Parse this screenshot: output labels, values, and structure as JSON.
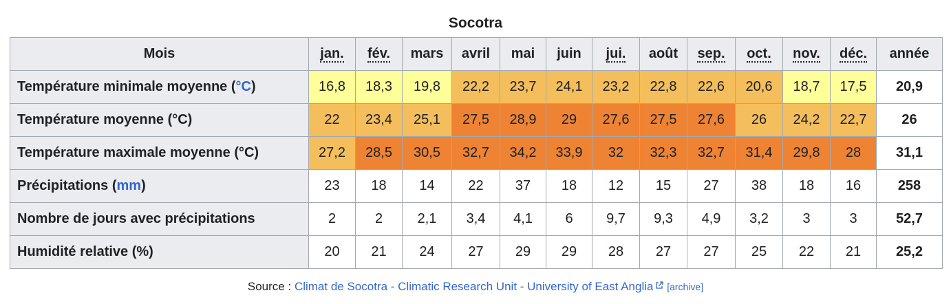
{
  "caption": "Socotra",
  "header": {
    "label": "Mois",
    "months": [
      "jan.",
      "fév.",
      "mars",
      "avril",
      "mai",
      "juin",
      "jui.",
      "août",
      "sep.",
      "oct.",
      "nov.",
      "déc."
    ],
    "abbreviated": [
      true,
      true,
      false,
      false,
      false,
      false,
      true,
      false,
      true,
      true,
      true,
      true
    ],
    "annual": "année"
  },
  "rows": [
    {
      "label": "Température minimale moyenne (",
      "unit": "°C",
      "unit_link": true,
      "label_end": ")",
      "values": [
        "16,8",
        "18,3",
        "19,8",
        "22,2",
        "23,7",
        "24,1",
        "23,2",
        "22,8",
        "22,6",
        "20,6",
        "18,7",
        "17,5"
      ],
      "colors": [
        "#ffff99",
        "#ffff99",
        "#ffff99",
        "#f4be5c",
        "#f4be5c",
        "#f4be5c",
        "#f4be5c",
        "#f4be5c",
        "#f4be5c",
        "#f4be5c",
        "#ffff99",
        "#ffff99"
      ],
      "annual": "20,9"
    },
    {
      "label": "Température moyenne (°C)",
      "unit": "",
      "unit_link": false,
      "label_end": "",
      "values": [
        "22",
        "23,4",
        "25,1",
        "27,5",
        "28,9",
        "29",
        "27,6",
        "27,5",
        "27,6",
        "26",
        "24,2",
        "22,7"
      ],
      "colors": [
        "#f4be5c",
        "#f4be5c",
        "#f4be5c",
        "#ee8333",
        "#ee8333",
        "#ee8333",
        "#ee8333",
        "#ee8333",
        "#ee8333",
        "#f4be5c",
        "#f4be5c",
        "#f4be5c"
      ],
      "annual": "26"
    },
    {
      "label": "Température maximale moyenne (°C)",
      "unit": "",
      "unit_link": false,
      "label_end": "",
      "values": [
        "27,2",
        "28,5",
        "30,5",
        "32,7",
        "34,2",
        "33,9",
        "32",
        "32,3",
        "32,7",
        "31,4",
        "29,8",
        "28"
      ],
      "colors": [
        "#f4be5c",
        "#ee8333",
        "#ee8333",
        "#ee8333",
        "#ee8333",
        "#ee8333",
        "#ee8333",
        "#ee8333",
        "#ee8333",
        "#ee8333",
        "#ee8333",
        "#ee8333"
      ],
      "annual": "31,1"
    },
    {
      "label": "Précipitations (",
      "unit": "mm",
      "unit_link": true,
      "label_end": ")",
      "values": [
        "23",
        "18",
        "14",
        "22",
        "37",
        "18",
        "12",
        "15",
        "27",
        "38",
        "18",
        "16"
      ],
      "colors": [
        "#ffffff",
        "#ffffff",
        "#ffffff",
        "#ffffff",
        "#ffffff",
        "#ffffff",
        "#ffffff",
        "#ffffff",
        "#ffffff",
        "#ffffff",
        "#ffffff",
        "#ffffff"
      ],
      "annual": "258"
    },
    {
      "label": "Nombre de jours avec précipitations",
      "unit": "",
      "unit_link": false,
      "label_end": "",
      "values": [
        "2",
        "2",
        "2,1",
        "3,4",
        "4,1",
        "6",
        "9,7",
        "9,3",
        "4,9",
        "3,2",
        "3",
        "3"
      ],
      "colors": [
        "#ffffff",
        "#ffffff",
        "#ffffff",
        "#ffffff",
        "#ffffff",
        "#ffffff",
        "#ffffff",
        "#ffffff",
        "#ffffff",
        "#ffffff",
        "#ffffff",
        "#ffffff"
      ],
      "annual": "52,7"
    },
    {
      "label": "Humidité relative (%)",
      "unit": "",
      "unit_link": false,
      "label_end": "",
      "values": [
        "20",
        "21",
        "24",
        "27",
        "29",
        "29",
        "28",
        "27",
        "27",
        "25",
        "22",
        "21"
      ],
      "colors": [
        "#ffffff",
        "#ffffff",
        "#ffffff",
        "#ffffff",
        "#ffffff",
        "#ffffff",
        "#ffffff",
        "#ffffff",
        "#ffffff",
        "#ffffff",
        "#ffffff",
        "#ffffff"
      ],
      "annual": "25,2"
    }
  ],
  "source": {
    "prefix": "Source : ",
    "link_text": "Climat de Socotra - Climatic Research Unit - University of East Anglia",
    "link_icon": "external-link-icon",
    "archive": "[archive]"
  }
}
